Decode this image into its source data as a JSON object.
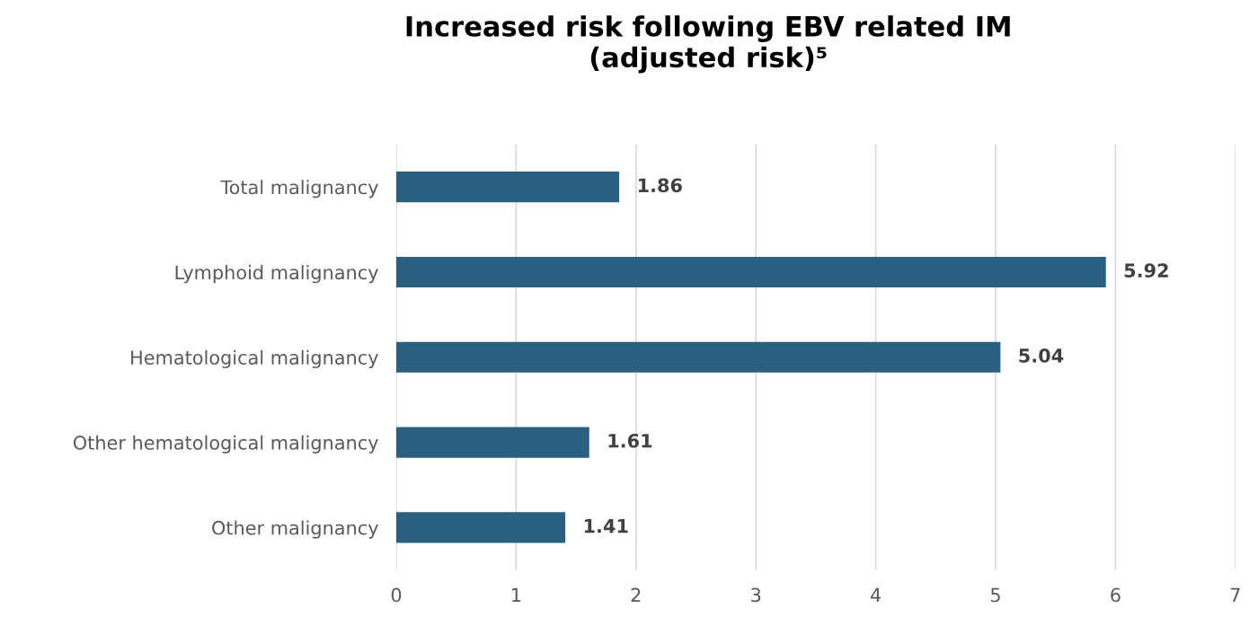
{
  "chart_data": {
    "type": "bar",
    "orientation": "horizontal",
    "title": "Increased risk following EBV related IM\n(adjusted risk)⁵",
    "categories": [
      "Total malignancy",
      "Lymphoid malignancy",
      "Hematological malignancy",
      "Other hematological malignancy",
      "Other malignancy"
    ],
    "values": [
      1.86,
      5.92,
      5.04,
      1.61,
      1.41
    ],
    "color": "#2b5f7f",
    "xlim": [
      0,
      7
    ],
    "xticks": [
      0,
      1,
      2,
      3,
      4,
      5,
      6,
      7
    ],
    "grid": "x",
    "data_labels": true,
    "legend": false
  }
}
